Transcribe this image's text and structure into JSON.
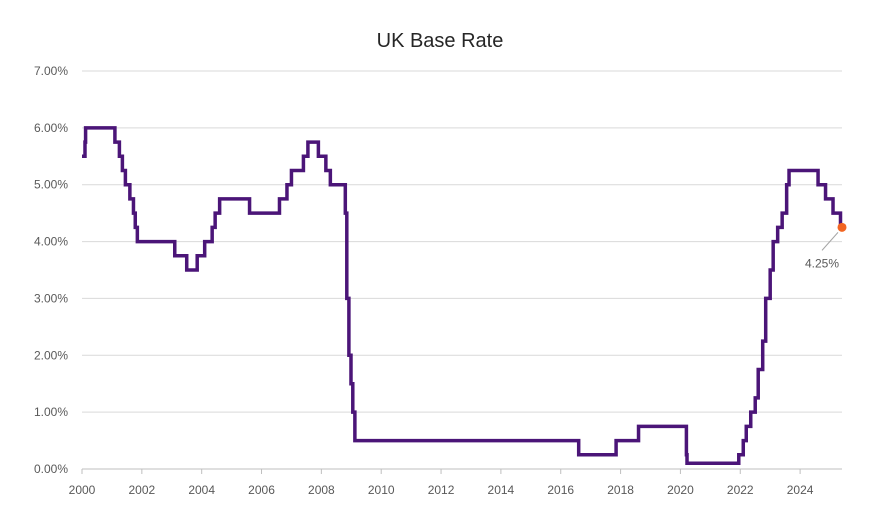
{
  "chart_data": {
    "type": "line",
    "title": "UK Base Rate",
    "xlabel": "",
    "ylabel": "",
    "xlim": [
      2000,
      2025.4
    ],
    "ylim": [
      0,
      7
    ],
    "grid": "horizontal",
    "x_ticks": [
      "2000",
      "2002",
      "2004",
      "2006",
      "2008",
      "2010",
      "2012",
      "2014",
      "2016",
      "2018",
      "2020",
      "2022",
      "2024"
    ],
    "y_ticks": [
      "0.00%",
      "1.00%",
      "2.00%",
      "3.00%",
      "4.00%",
      "5.00%",
      "6.00%",
      "7.00%"
    ],
    "colors": {
      "line": "#4b1578",
      "marker": "#f26522",
      "leader": "#a6a6a6"
    },
    "series": [
      {
        "step": "post",
        "x": [
          2000.0,
          2000.1,
          2000.12,
          2001.1,
          2001.25,
          2001.35,
          2001.45,
          2001.6,
          2001.72,
          2001.78,
          2001.85,
          2003.1,
          2003.5,
          2003.85,
          2004.1,
          2004.35,
          2004.45,
          2004.6,
          2005.6,
          2006.6,
          2006.85,
          2007.0,
          2007.4,
          2007.55,
          2007.9,
          2008.15,
          2008.3,
          2008.8,
          2008.85,
          2008.92,
          2008.99,
          2009.05,
          2009.12,
          2009.17,
          2016.6,
          2017.85,
          2018.6,
          2020.2,
          2020.22,
          2021.95,
          2022.1,
          2022.2,
          2022.35,
          2022.5,
          2022.6,
          2022.75,
          2022.85,
          2023.0,
          2023.1,
          2023.25,
          2023.4,
          2023.55,
          2023.63,
          2024.6,
          2024.85,
          2025.1,
          2025.35
        ],
        "y": [
          5.5,
          5.75,
          6.0,
          5.75,
          5.5,
          5.25,
          5.0,
          4.75,
          4.5,
          4.25,
          4.0,
          3.75,
          3.5,
          3.75,
          4.0,
          4.25,
          4.5,
          4.75,
          4.5,
          4.75,
          5.0,
          5.25,
          5.5,
          5.75,
          5.5,
          5.25,
          5.0,
          4.5,
          3.0,
          2.0,
          1.5,
          1.0,
          0.5,
          0.5,
          0.25,
          0.5,
          0.75,
          0.25,
          0.1,
          0.25,
          0.5,
          0.75,
          1.0,
          1.25,
          1.75,
          2.25,
          3.0,
          3.5,
          4.0,
          4.25,
          4.5,
          5.0,
          5.25,
          5.0,
          4.75,
          4.5,
          4.25
        ]
      }
    ],
    "x_end": 2025.4,
    "annotations": [
      {
        "x": 2025.4,
        "y": 4.25,
        "label": "4.25%"
      }
    ]
  }
}
